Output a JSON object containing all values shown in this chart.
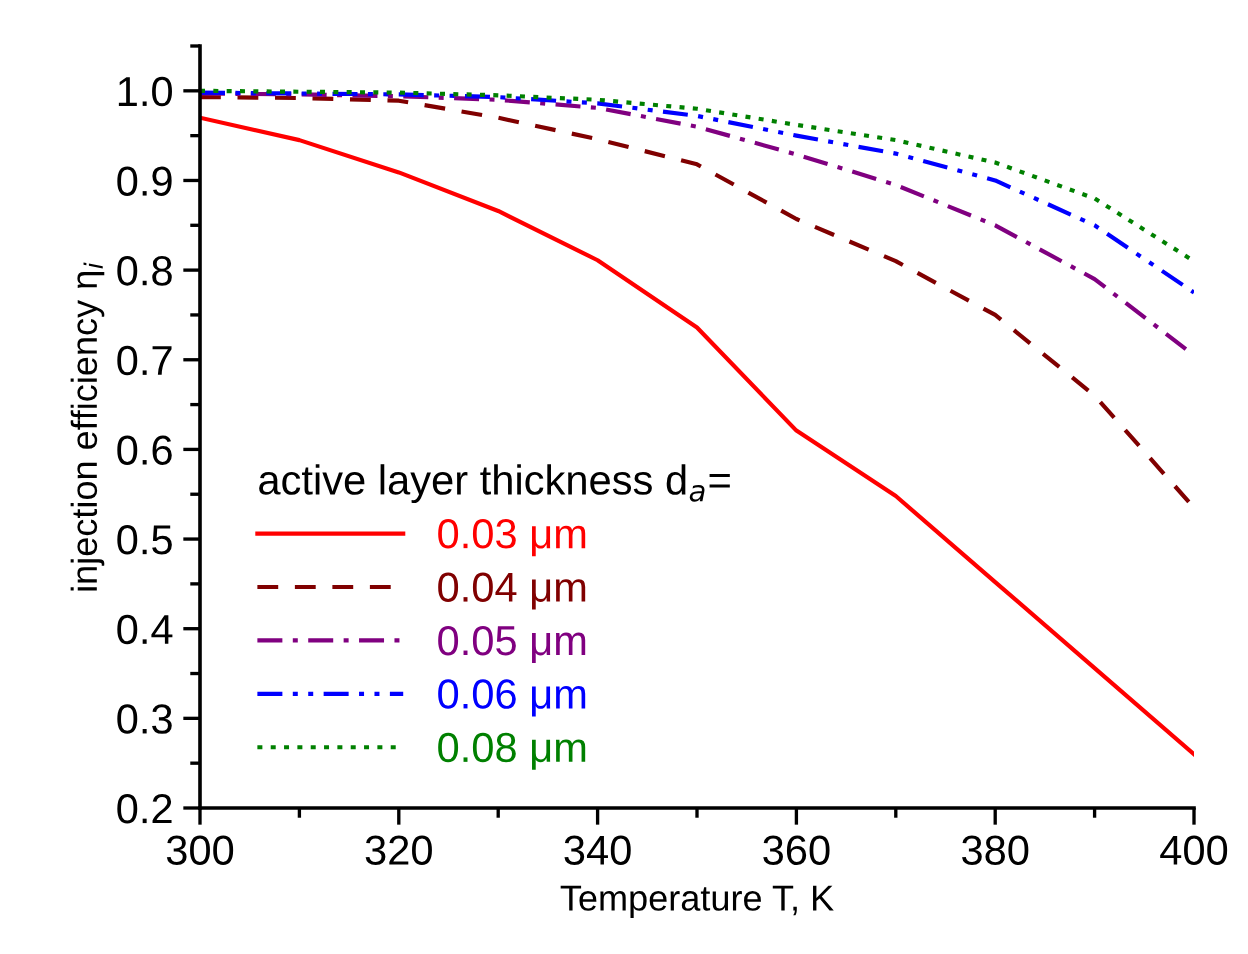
{
  "chart_data": {
    "type": "line",
    "xlabel": "Temperature T, K",
    "ylabel": "injection efficiency η$_{i}$",
    "legend_title": "active layer thickness d$_{a}$=",
    "x": [
      300,
      310,
      320,
      330,
      340,
      350,
      360,
      370,
      380,
      390,
      400
    ],
    "series": [
      {
        "name": "0.03 μm",
        "color": "#ff0000",
        "line_style": "solid",
        "values": [
          0.97,
          0.945,
          0.909,
          0.866,
          0.811,
          0.736,
          0.621,
          0.548,
          0.452,
          0.356,
          0.26
        ]
      },
      {
        "name": "0.04 μm",
        "color": "#800000",
        "line_style": "dashed",
        "values": [
          0.993,
          0.992,
          0.989,
          0.97,
          0.946,
          0.918,
          0.857,
          0.81,
          0.75,
          0.66,
          0.535
        ]
      },
      {
        "name": "0.05 μm",
        "color": "#800080",
        "line_style": "dashdot",
        "values": [
          0.997,
          0.996,
          0.994,
          0.99,
          0.981,
          0.96,
          0.929,
          0.895,
          0.85,
          0.79,
          0.705
        ]
      },
      {
        "name": "0.06 μm",
        "color": "#0000ff",
        "line_style": "dashdotdot",
        "values": [
          0.998,
          0.997,
          0.996,
          0.993,
          0.986,
          0.972,
          0.95,
          0.93,
          0.9,
          0.85,
          0.775
        ]
      },
      {
        "name": "0.08 μm",
        "color": "#008000",
        "line_style": "dotted",
        "values": [
          1.0,
          0.999,
          0.998,
          0.995,
          0.99,
          0.98,
          0.962,
          0.945,
          0.92,
          0.88,
          0.81
        ]
      }
    ],
    "xlim": [
      300,
      400
    ],
    "xticks": [
      300,
      320,
      340,
      360,
      380,
      400
    ],
    "ylim": [
      0.2,
      1.05
    ],
    "yticks": [
      {
        "value": 0.2,
        "label": "0.2"
      },
      {
        "value": 0.3,
        "label": "0.3"
      },
      {
        "value": 0.4,
        "label": "0.4"
      },
      {
        "value": 0.5,
        "label": "0.5"
      },
      {
        "value": 0.6,
        "label": "0.6"
      },
      {
        "value": 0.7,
        "label": "0.7"
      },
      {
        "value": 0.8,
        "label": "0.8"
      },
      {
        "value": 0.9,
        "label": "0.9"
      },
      {
        "value": 1.0,
        "label": "1.0"
      }
    ],
    "grid": false,
    "legend": "bottom left",
    "marker": "none"
  }
}
